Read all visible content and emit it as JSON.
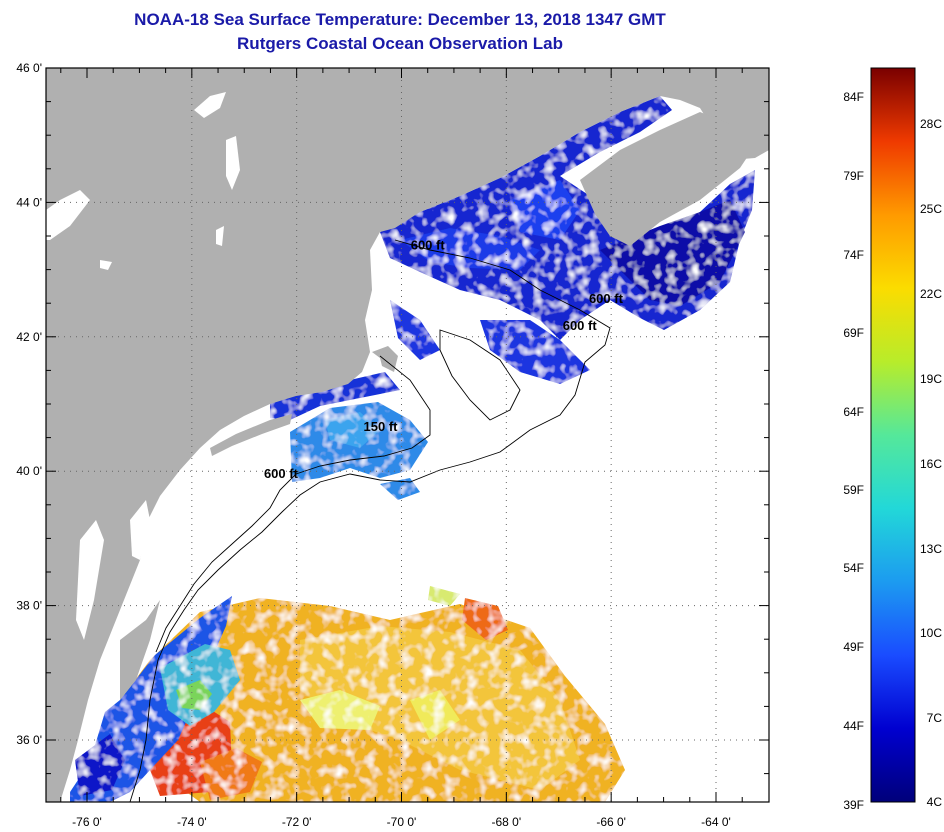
{
  "title": "NOAA-18 Sea Surface Temperature:  December 13, 2018 1347 GMT",
  "subtitle": "Rutgers Coastal Ocean Observation Lab",
  "map": {
    "lon_ticks": [
      {
        "value": -76,
        "label": "-76 0'"
      },
      {
        "value": -74,
        "label": "-74 0'"
      },
      {
        "value": -72,
        "label": "-72 0'"
      },
      {
        "value": -70,
        "label": "-70 0'"
      },
      {
        "value": -68,
        "label": "-68 0'"
      },
      {
        "value": -66,
        "label": "-66 0'"
      },
      {
        "value": -64,
        "label": "-64 0'"
      }
    ],
    "lat_ticks": [
      {
        "value": 46,
        "label": "46 0'"
      },
      {
        "value": 44,
        "label": "44 0'"
      },
      {
        "value": 42,
        "label": "42 0'"
      },
      {
        "value": 40,
        "label": "40 0'"
      },
      {
        "value": 38,
        "label": "38 0'"
      },
      {
        "value": 36,
        "label": "36 0'"
      }
    ],
    "contour_labels": [
      {
        "text": "600 ft",
        "lon": -69.5,
        "lat": 43.3
      },
      {
        "text": "600 ft",
        "lon": -66.1,
        "lat": 42.5
      },
      {
        "text": "600 ft",
        "lon": -66.6,
        "lat": 42.1
      },
      {
        "text": "150 ft",
        "lon": -70.4,
        "lat": 40.6
      },
      {
        "text": "600 ft",
        "lon": -72.3,
        "lat": 39.9
      }
    ]
  },
  "colorbar": {
    "fahrenheit": [
      "84F",
      "79F",
      "74F",
      "69F",
      "64F",
      "59F",
      "54F",
      "49F",
      "44F",
      "39F"
    ],
    "celsius": [
      "28C",
      "25C",
      "22C",
      "19C",
      "16C",
      "13C",
      "10C",
      "7C",
      "4C"
    ]
  },
  "colors": {
    "land": "#b0b0b0",
    "no_data": "#ffffff",
    "title": "#1a1aa8"
  }
}
